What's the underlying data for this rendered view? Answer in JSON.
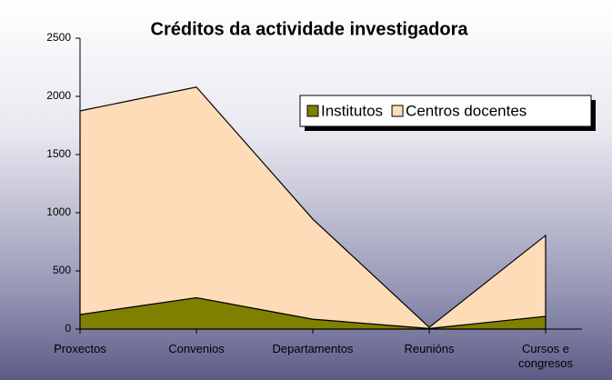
{
  "chart_data": {
    "type": "stacked_area",
    "title": "Créditos da actividade investigadora",
    "categories": [
      "Proxectos",
      "Convenios",
      "Departamentos",
      "Reunións",
      "Cursos e congresos"
    ],
    "series": [
      {
        "name": "Institutos",
        "color": "#808000",
        "values": [
          125,
          270,
          85,
          5,
          110
        ]
      },
      {
        "name": "Centros docentes",
        "color": "#ffdcb8",
        "values": [
          1750,
          1810,
          860,
          10,
          695
        ]
      }
    ],
    "ylim": [
      0,
      2500
    ],
    "yticks": [
      0,
      500,
      1000,
      1500,
      2000,
      2500
    ],
    "legend": "upper right"
  }
}
